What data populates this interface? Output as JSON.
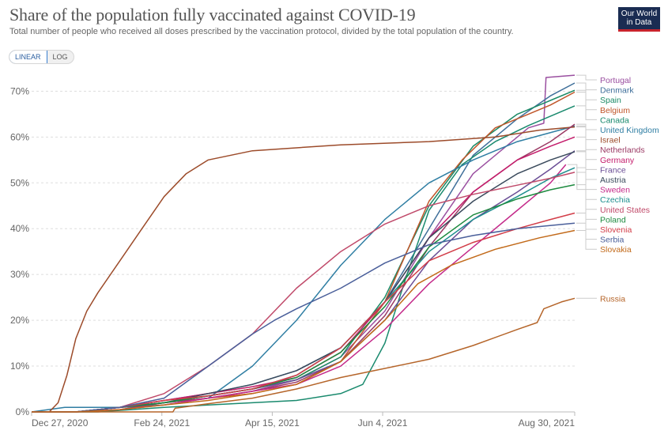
{
  "header": {
    "title": "Share of the population fully vaccinated against COVID-19",
    "subtitle": "Total number of people who received all doses prescribed by the vaccination protocol, divided by the total population of the country.",
    "logo_line1": "Our World",
    "logo_line2": "in Data"
  },
  "controls": {
    "linear_label": "LINEAR",
    "log_label": "LOG",
    "selected": "LINEAR"
  },
  "chart_data": {
    "type": "line",
    "title": "Share of the population fully vaccinated against COVID-19",
    "xlabel": "",
    "ylabel": "",
    "x_tick_labels": [
      "Dec 27, 2020",
      "Feb 24, 2021",
      "Apr 15, 2021",
      "Jun 4, 2021",
      "Aug 30, 2021"
    ],
    "x_ticks_days": [
      0,
      59,
      109,
      159,
      246
    ],
    "x_range_days": [
      0,
      246
    ],
    "y_tick_labels": [
      "0%",
      "10%",
      "20%",
      "30%",
      "40%",
      "50%",
      "60%",
      "70%"
    ],
    "ylim": [
      0,
      73
    ],
    "grid": true,
    "legend": "right",
    "series": [
      {
        "name": "Portugal",
        "color": "#9a4fa0",
        "points": [
          [
            0,
            0
          ],
          [
            20,
            0
          ],
          [
            40,
            1
          ],
          [
            60,
            2
          ],
          [
            80,
            3
          ],
          [
            100,
            4.5
          ],
          [
            120,
            7
          ],
          [
            140,
            12
          ],
          [
            160,
            22
          ],
          [
            180,
            38
          ],
          [
            200,
            52
          ],
          [
            215,
            58
          ],
          [
            225,
            62
          ],
          [
            232,
            63
          ],
          [
            233,
            73
          ],
          [
            246,
            73.5
          ]
        ]
      },
      {
        "name": "Denmark",
        "color": "#3f6f9a",
        "points": [
          [
            0,
            0
          ],
          [
            20,
            0
          ],
          [
            40,
            1
          ],
          [
            60,
            2.5
          ],
          [
            80,
            4
          ],
          [
            100,
            6
          ],
          [
            120,
            9
          ],
          [
            140,
            14
          ],
          [
            160,
            24
          ],
          [
            180,
            40
          ],
          [
            200,
            56
          ],
          [
            220,
            64
          ],
          [
            235,
            69
          ],
          [
            246,
            71.8
          ]
        ]
      },
      {
        "name": "Spain",
        "color": "#1b8a66",
        "points": [
          [
            0,
            0
          ],
          [
            20,
            0
          ],
          [
            40,
            1
          ],
          [
            60,
            2
          ],
          [
            80,
            3.5
          ],
          [
            100,
            5
          ],
          [
            120,
            7
          ],
          [
            140,
            12
          ],
          [
            160,
            25
          ],
          [
            180,
            45
          ],
          [
            200,
            58
          ],
          [
            220,
            65
          ],
          [
            235,
            68
          ],
          [
            246,
            70.2
          ]
        ]
      },
      {
        "name": "Belgium",
        "color": "#c0562a",
        "points": [
          [
            0,
            0
          ],
          [
            20,
            0
          ],
          [
            40,
            0.5
          ],
          [
            60,
            2
          ],
          [
            80,
            3
          ],
          [
            100,
            4
          ],
          [
            120,
            6
          ],
          [
            140,
            11
          ],
          [
            160,
            24
          ],
          [
            180,
            46
          ],
          [
            195,
            55
          ],
          [
            210,
            62
          ],
          [
            225,
            65
          ],
          [
            235,
            67
          ],
          [
            246,
            69.8
          ]
        ]
      },
      {
        "name": "Canada",
        "color": "#1a8a6e",
        "points": [
          [
            0,
            0
          ],
          [
            30,
            0
          ],
          [
            60,
            1
          ],
          [
            80,
            1.5
          ],
          [
            100,
            2
          ],
          [
            120,
            2.5
          ],
          [
            140,
            4
          ],
          [
            150,
            6
          ],
          [
            160,
            15
          ],
          [
            170,
            30
          ],
          [
            180,
            44
          ],
          [
            195,
            54
          ],
          [
            210,
            59
          ],
          [
            225,
            62.5
          ],
          [
            246,
            66.8
          ]
        ]
      },
      {
        "name": "United Kingdom",
        "color": "#2f7ea3",
        "points": [
          [
            0,
            0
          ],
          [
            15,
            1
          ],
          [
            40,
            1
          ],
          [
            60,
            1.5
          ],
          [
            80,
            3
          ],
          [
            100,
            10
          ],
          [
            110,
            15
          ],
          [
            120,
            20
          ],
          [
            140,
            32
          ],
          [
            160,
            42
          ],
          [
            180,
            50
          ],
          [
            200,
            55
          ],
          [
            220,
            59
          ],
          [
            246,
            62.4
          ]
        ]
      },
      {
        "name": "Israel",
        "color": "#9c4b2a",
        "points": [
          [
            0,
            0
          ],
          [
            8,
            0
          ],
          [
            12,
            2
          ],
          [
            16,
            8
          ],
          [
            20,
            16
          ],
          [
            25,
            22
          ],
          [
            30,
            26
          ],
          [
            40,
            33
          ],
          [
            50,
            40
          ],
          [
            60,
            47
          ],
          [
            70,
            52
          ],
          [
            80,
            55
          ],
          [
            100,
            57
          ],
          [
            140,
            58.3
          ],
          [
            180,
            59
          ],
          [
            210,
            60
          ],
          [
            230,
            61.5
          ],
          [
            246,
            62.2
          ]
        ]
      },
      {
        "name": "Netherlands",
        "color": "#9b3a64",
        "points": [
          [
            0,
            0
          ],
          [
            20,
            0
          ],
          [
            40,
            0.5
          ],
          [
            60,
            2
          ],
          [
            80,
            3
          ],
          [
            100,
            4.5
          ],
          [
            120,
            6.5
          ],
          [
            140,
            11
          ],
          [
            160,
            21
          ],
          [
            180,
            36
          ],
          [
            200,
            48
          ],
          [
            220,
            55
          ],
          [
            235,
            59
          ],
          [
            246,
            62.8
          ]
        ]
      },
      {
        "name": "Germany",
        "color": "#c41c6b",
        "points": [
          [
            0,
            0
          ],
          [
            20,
            0
          ],
          [
            40,
            1
          ],
          [
            60,
            2.5
          ],
          [
            80,
            4
          ],
          [
            100,
            5.5
          ],
          [
            120,
            7.5
          ],
          [
            140,
            13
          ],
          [
            160,
            24
          ],
          [
            180,
            38
          ],
          [
            200,
            48
          ],
          [
            220,
            55
          ],
          [
            235,
            58
          ],
          [
            246,
            60
          ]
        ]
      },
      {
        "name": "France",
        "color": "#6b4e96",
        "points": [
          [
            0,
            0
          ],
          [
            20,
            0
          ],
          [
            40,
            1
          ],
          [
            60,
            2
          ],
          [
            80,
            3.5
          ],
          [
            100,
            5
          ],
          [
            120,
            7
          ],
          [
            140,
            11
          ],
          [
            160,
            20
          ],
          [
            180,
            33
          ],
          [
            200,
            42
          ],
          [
            220,
            48
          ],
          [
            235,
            53
          ],
          [
            246,
            57
          ]
        ]
      },
      {
        "name": "Austria",
        "color": "#3a4a5c",
        "points": [
          [
            0,
            0
          ],
          [
            20,
            0
          ],
          [
            40,
            1
          ],
          [
            60,
            2
          ],
          [
            80,
            4
          ],
          [
            100,
            6
          ],
          [
            120,
            9
          ],
          [
            140,
            14
          ],
          [
            160,
            24
          ],
          [
            180,
            38
          ],
          [
            200,
            46
          ],
          [
            220,
            52
          ],
          [
            235,
            55
          ],
          [
            246,
            56.8
          ]
        ]
      },
      {
        "name": "Sweden",
        "color": "#c42a8a",
        "points": [
          [
            0,
            0
          ],
          [
            20,
            0
          ],
          [
            40,
            0.5
          ],
          [
            60,
            1.5
          ],
          [
            80,
            3
          ],
          [
            100,
            4.5
          ],
          [
            120,
            6
          ],
          [
            140,
            10
          ],
          [
            160,
            18
          ],
          [
            180,
            28
          ],
          [
            200,
            36
          ],
          [
            220,
            44
          ],
          [
            235,
            50
          ],
          [
            242,
            54
          ]
        ]
      },
      {
        "name": "Czechia",
        "color": "#1f8f8f",
        "points": [
          [
            0,
            0
          ],
          [
            20,
            0
          ],
          [
            40,
            1
          ],
          [
            60,
            2
          ],
          [
            80,
            3.5
          ],
          [
            100,
            5
          ],
          [
            120,
            8
          ],
          [
            140,
            14
          ],
          [
            160,
            24
          ],
          [
            180,
            35
          ],
          [
            200,
            42
          ],
          [
            220,
            47
          ],
          [
            235,
            51
          ],
          [
            246,
            53.3
          ]
        ]
      },
      {
        "name": "United States",
        "color": "#c04a6a",
        "points": [
          [
            0,
            0
          ],
          [
            20,
            0
          ],
          [
            40,
            1
          ],
          [
            60,
            4
          ],
          [
            80,
            10
          ],
          [
            100,
            17
          ],
          [
            120,
            27
          ],
          [
            140,
            35
          ],
          [
            160,
            41
          ],
          [
            180,
            45
          ],
          [
            200,
            47.5
          ],
          [
            220,
            49.5
          ],
          [
            235,
            51
          ],
          [
            246,
            52.3
          ]
        ]
      },
      {
        "name": "Poland",
        "color": "#1d8a3f",
        "points": [
          [
            0,
            0
          ],
          [
            20,
            0
          ],
          [
            40,
            1
          ],
          [
            60,
            2
          ],
          [
            80,
            3.5
          ],
          [
            100,
            5
          ],
          [
            120,
            7.5
          ],
          [
            140,
            13
          ],
          [
            160,
            23
          ],
          [
            180,
            36
          ],
          [
            200,
            43
          ],
          [
            220,
            46.5
          ],
          [
            235,
            48.5
          ],
          [
            246,
            49.6
          ]
        ]
      },
      {
        "name": "Slovenia",
        "color": "#d23d48",
        "points": [
          [
            0,
            0
          ],
          [
            20,
            0
          ],
          [
            40,
            1
          ],
          [
            60,
            2.5
          ],
          [
            80,
            3.5
          ],
          [
            100,
            5
          ],
          [
            120,
            8
          ],
          [
            140,
            14
          ],
          [
            160,
            24
          ],
          [
            180,
            33
          ],
          [
            200,
            37
          ],
          [
            220,
            40
          ],
          [
            235,
            42
          ],
          [
            246,
            43.4
          ]
        ]
      },
      {
        "name": "Serbia",
        "color": "#4a5f9a",
        "points": [
          [
            0,
            0
          ],
          [
            20,
            0
          ],
          [
            40,
            1
          ],
          [
            60,
            3
          ],
          [
            80,
            10
          ],
          [
            100,
            17
          ],
          [
            110,
            20
          ],
          [
            120,
            22.5
          ],
          [
            140,
            27
          ],
          [
            160,
            32.5
          ],
          [
            180,
            36.5
          ],
          [
            200,
            38.5
          ],
          [
            220,
            40
          ],
          [
            246,
            41.2
          ]
        ]
      },
      {
        "name": "Slovakia",
        "color": "#c26a1a",
        "points": [
          [
            0,
            0
          ],
          [
            20,
            0
          ],
          [
            40,
            0.5
          ],
          [
            60,
            1.5
          ],
          [
            80,
            2.5
          ],
          [
            100,
            4
          ],
          [
            120,
            6
          ],
          [
            140,
            11
          ],
          [
            160,
            20
          ],
          [
            175,
            28
          ],
          [
            190,
            32
          ],
          [
            210,
            35.5
          ],
          [
            230,
            38
          ],
          [
            246,
            39.6
          ]
        ]
      },
      {
        "name": "Russia",
        "color": "#b5652a",
        "points": [
          [
            0,
            0
          ],
          [
            64,
            0
          ],
          [
            65,
            0.8
          ],
          [
            80,
            1.8
          ],
          [
            100,
            3
          ],
          [
            120,
            5
          ],
          [
            140,
            7.5
          ],
          [
            160,
            9.5
          ],
          [
            180,
            11.5
          ],
          [
            200,
            14.5
          ],
          [
            220,
            18
          ],
          [
            229,
            19.5
          ],
          [
            232,
            22.5
          ],
          [
            240,
            24
          ],
          [
            246,
            24.8
          ]
        ]
      }
    ]
  }
}
